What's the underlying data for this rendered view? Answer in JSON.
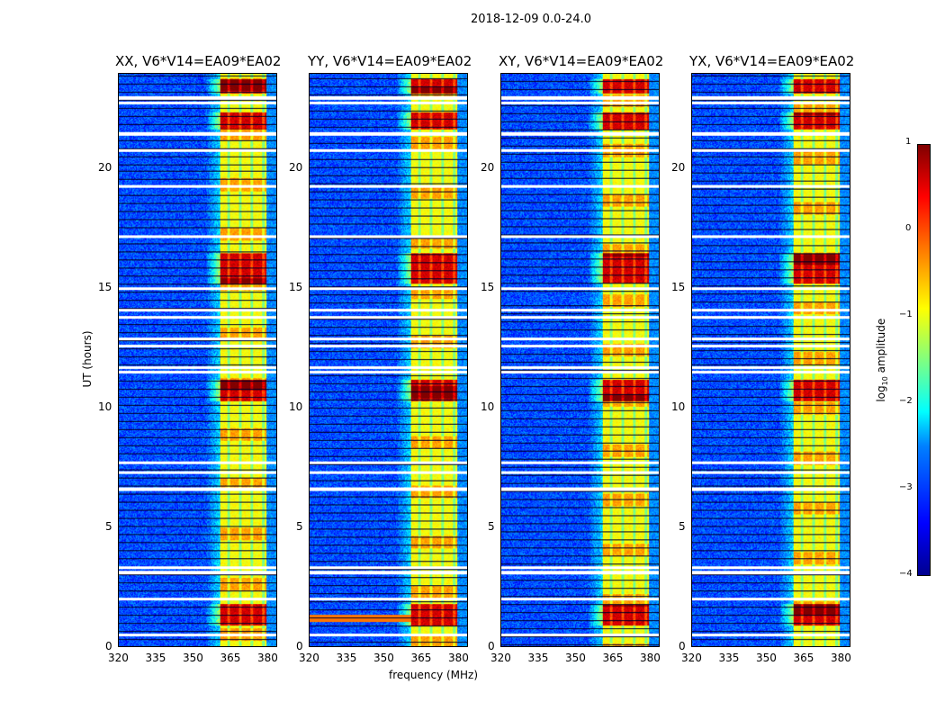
{
  "chart_data": {
    "type": "heatmap",
    "title": "2018-12-09 0.0-24.0",
    "xlabel": "frequency (MHz)",
    "ylabel": "UT (hours)",
    "xlim": [
      320,
      384
    ],
    "ylim": [
      0,
      24
    ],
    "xticks": [
      "320",
      "335",
      "350",
      "365",
      "380"
    ],
    "xtick_values": [
      320,
      335,
      350,
      365,
      380
    ],
    "yticks": [
      "0",
      "5",
      "10",
      "15",
      "20"
    ],
    "ytick_values": [
      0,
      5,
      10,
      15,
      20
    ],
    "panels": [
      {
        "title": "XX, V6*V14=EA09*EA02"
      },
      {
        "title": "YY, V6*V14=EA09*EA02"
      },
      {
        "title": "XY, V6*V14=EA09*EA02"
      },
      {
        "title": "YX, V6*V14=EA09*EA02"
      }
    ],
    "colorbar": {
      "label": "log10 amplitude",
      "label_main": "log",
      "label_sub": "10",
      "label_rest": " amplitude",
      "range": [
        -4,
        1
      ],
      "ticks": [
        "1",
        "0",
        "−1",
        "−2",
        "−3",
        "−4"
      ],
      "tick_values": [
        1,
        0,
        -1,
        -2,
        -3,
        -4
      ],
      "colormap": "jet"
    },
    "rfi_band_mhz": [
      361,
      380
    ],
    "background_log_amp": -3.0,
    "band_log_amp": -0.9,
    "strong_rfi_hours": [
      [
        0.9,
        1.8
      ],
      [
        10.3,
        11.2
      ],
      [
        15.2,
        16.5
      ],
      [
        21.7,
        22.4
      ],
      [
        23.2,
        23.8
      ]
    ],
    "flagged_hours": [
      0.5,
      2.0,
      3.1,
      3.3,
      6.6,
      7.3,
      7.7,
      11.5,
      11.7,
      12.6,
      12.9,
      13.8,
      14.1,
      15.0,
      17.2,
      19.3,
      20.8,
      21.5,
      22.8,
      23.0
    ]
  }
}
